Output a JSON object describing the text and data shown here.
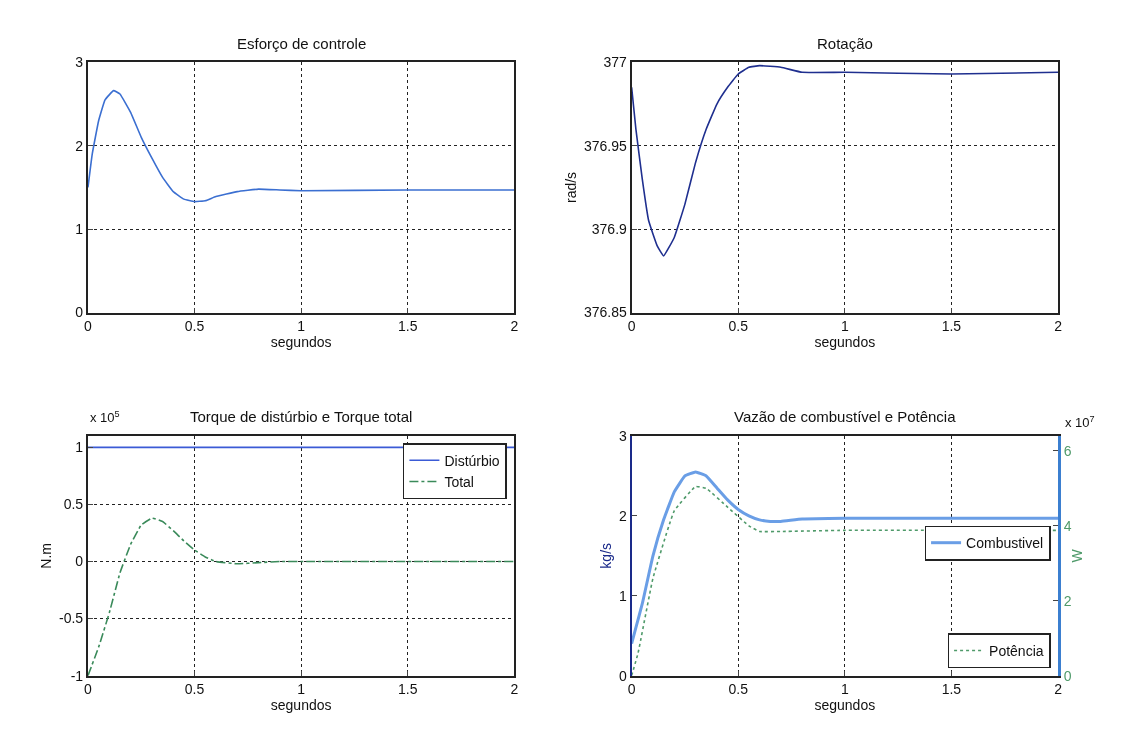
{
  "chart_data": [
    {
      "type": "line",
      "title": "Esforço de controle",
      "xlabel": "segundos",
      "xlim": [
        0,
        2
      ],
      "xticks": [
        0,
        {
          "value": 0.5,
          "label": "0.5"
        },
        1,
        1.5,
        2
      ],
      "ylim": [
        0,
        3
      ],
      "yticks": [
        0,
        1,
        2,
        3
      ],
      "grid": true,
      "legend": false,
      "series": [
        {
          "color": "#3b6fd1",
          "x": [
            0,
            0.02,
            0.05,
            0.08,
            0.12,
            0.15,
            0.2,
            0.25,
            0.3,
            0.35,
            0.4,
            0.45,
            0.5,
            0.55,
            0.6,
            0.7,
            0.8,
            0.9,
            1,
            1.5,
            2
          ],
          "values": [
            1.5,
            1.9,
            2.3,
            2.55,
            2.66,
            2.62,
            2.4,
            2.1,
            1.85,
            1.62,
            1.45,
            1.36,
            1.33,
            1.34,
            1.39,
            1.45,
            1.48,
            1.47,
            1.46,
            1.47,
            1.47
          ]
        }
      ]
    },
    {
      "type": "line",
      "title": "Rotação",
      "xlabel": "segundos",
      "ylabel": "rad/s",
      "xlim": [
        0,
        2
      ],
      "xticks": [
        0,
        0.5,
        1,
        1.5,
        2
      ],
      "ylim": [
        376.85,
        377
      ],
      "yticks": [
        376.85,
        376.9,
        376.95,
        377
      ],
      "grid": true,
      "legend": false,
      "series": [
        {
          "color": "#1f2f8f",
          "x": [
            0,
            0.02,
            0.05,
            0.08,
            0.12,
            0.15,
            0.2,
            0.25,
            0.3,
            0.35,
            0.4,
            0.45,
            0.5,
            0.55,
            0.6,
            0.7,
            0.8,
            1,
            1.5,
            2
          ],
          "values": [
            376.985,
            376.96,
            376.93,
            376.905,
            376.89,
            376.884,
            376.895,
            376.915,
            376.94,
            376.96,
            376.975,
            376.985,
            376.993,
            376.997,
            376.998,
            376.997,
            376.994,
            376.994,
            376.993,
            376.994
          ]
        }
      ]
    },
    {
      "type": "line",
      "title": "Torque de distúrbio e Torque total",
      "xlabel": "segundos",
      "ylabel": "N.m",
      "annotations": [
        "x 10$^{5}$"
      ],
      "xlim": [
        0,
        2
      ],
      "xticks": [
        0,
        0.5,
        1,
        1.5,
        2
      ],
      "ylim": [
        -1,
        1.1
      ],
      "yticks": [
        -1,
        -0.5,
        0,
        0.5,
        1
      ],
      "grid": true,
      "legend": "top right",
      "series": [
        {
          "name": "Distúrbio",
          "color": "#3b5bd6",
          "line_style": "solid",
          "x": [
            0,
            2
          ],
          "values": [
            1,
            1
          ]
        },
        {
          "name": "Total",
          "color": "#3a8a5a",
          "line_style": "dashed",
          "x": [
            0,
            0.05,
            0.1,
            0.15,
            0.2,
            0.25,
            0.3,
            0.35,
            0.4,
            0.45,
            0.5,
            0.55,
            0.6,
            0.7,
            0.8,
            0.9,
            1,
            2
          ],
          "values": [
            -1,
            -0.75,
            -0.45,
            -0.1,
            0.15,
            0.32,
            0.38,
            0.35,
            0.27,
            0.18,
            0.1,
            0.04,
            0,
            -0.02,
            -0.01,
            0,
            0,
            0
          ]
        }
      ]
    },
    {
      "type": "line",
      "title": "Vazão de combustível e Potência",
      "xlabel": "segundos",
      "ylabel": "kg/s",
      "y2label": "W",
      "annotations": [
        "x 10$^{7}$"
      ],
      "xlim": [
        0,
        2
      ],
      "xticks": [
        0,
        0.5,
        1,
        1.5,
        2
      ],
      "ylim": [
        0,
        3
      ],
      "yticks": [
        0,
        1,
        2,
        3
      ],
      "y2lim": [
        0,
        6.4
      ],
      "y2ticks": [
        0,
        2,
        4,
        6
      ],
      "grid": "x",
      "legend": "bottom right",
      "series": [
        {
          "name": "Combustivel",
          "color": "#6a9ee6",
          "line_style": "solid",
          "x": [
            0,
            0.02,
            0.05,
            0.1,
            0.15,
            0.2,
            0.25,
            0.3,
            0.35,
            0.4,
            0.45,
            0.5,
            0.55,
            0.6,
            0.65,
            0.7,
            0.8,
            1,
            2
          ],
          "values": [
            0.4,
            0.6,
            0.9,
            1.5,
            1.95,
            2.3,
            2.5,
            2.55,
            2.5,
            2.35,
            2.2,
            2.08,
            2,
            1.95,
            1.93,
            1.93,
            1.96,
            1.97,
            1.97
          ]
        },
        {
          "name": "Potência",
          "color": "#4f9a6a",
          "line_style": "dotted",
          "axis": "y2",
          "x": [
            0,
            0.03,
            0.1,
            0.2,
            0.3,
            0.35,
            0.45,
            0.55,
            0.6,
            0.7,
            1,
            2
          ],
          "values": [
            0,
            0.6,
            2.6,
            4.4,
            5.05,
            5,
            4.5,
            4,
            3.85,
            3.85,
            3.88,
            3.88
          ]
        }
      ]
    }
  ]
}
